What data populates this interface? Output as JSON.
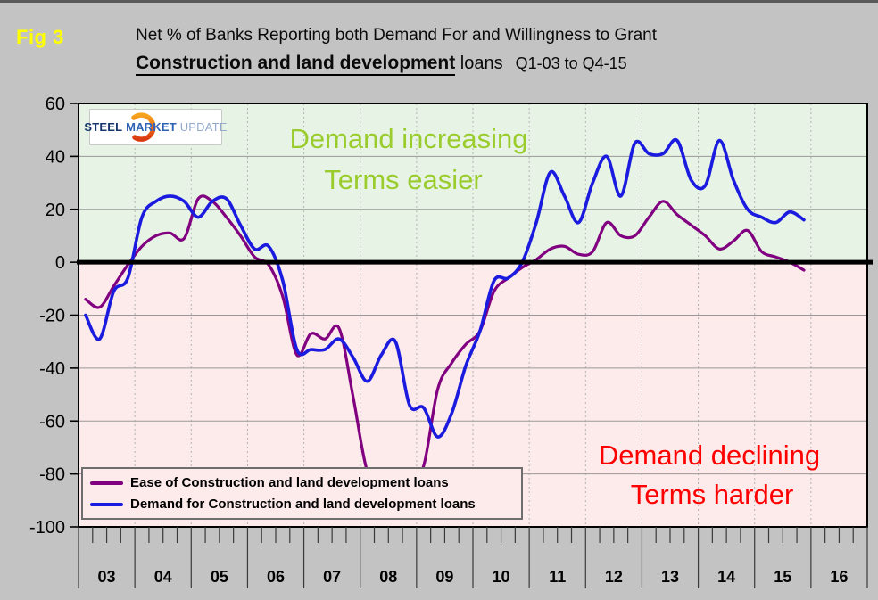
{
  "figure": {
    "tag": "Fig 3",
    "title_line1": "Net % of Banks Reporting both Demand For and Willingness to Grant",
    "title_bold": "Construction and land development",
    "title_loans": " loans",
    "title_range": "Q1-03 to Q4-15"
  },
  "logo": {
    "word1": "STEEL",
    "word2": "MARKET",
    "word3": "UPDATE"
  },
  "annotations": {
    "increasing_line1": "Demand increasing",
    "increasing_line2": "Terms easier",
    "declining_line1": "Demand declining",
    "declining_line2": "Terms harder",
    "increasing_color": "#9acc2e",
    "declining_color": "#ff0000"
  },
  "legend": [
    {
      "label": "Ease of Construction and land development loans",
      "color": "#800080"
    },
    {
      "label": "Demand for Construction and land development loans",
      "color": "#1b1be0"
    }
  ],
  "chart_data": {
    "type": "line",
    "x_unit": "quarter",
    "x_range": "Q1-2003 to Q4-2015",
    "years": [
      "03",
      "04",
      "05",
      "06",
      "07",
      "08",
      "09",
      "10",
      "11",
      "12",
      "13",
      "14",
      "15",
      "16"
    ],
    "quarters_per_year": 4,
    "y_ticks": [
      60,
      40,
      20,
      0,
      -20,
      -40,
      -60,
      -80,
      -100
    ],
    "ylim": [
      -100,
      60
    ],
    "grid": "horizontal solid every 20, dashed vertical at year boundaries",
    "zones": {
      "above_zero_color": "#e7f4e5",
      "below_zero_color": "#fdeaea"
    },
    "series": [
      {
        "name": "Ease of Construction and land development loans",
        "color": "#800080",
        "width": 3.2,
        "values": [
          -14,
          -17,
          -9,
          -1,
          6,
          10,
          11,
          9,
          24,
          23,
          17,
          10,
          2,
          -1,
          -13,
          -35,
          -27,
          -29,
          -25,
          -51,
          -79,
          -83,
          -85,
          -84,
          -77,
          -48,
          -38,
          -31,
          -26,
          -11,
          -6,
          -2,
          1,
          5,
          6,
          3,
          4,
          15,
          10,
          10,
          17,
          23,
          18,
          14,
          10,
          5,
          8,
          12,
          4,
          2,
          0,
          -3
        ]
      },
      {
        "name": "Demand for Construction and land development loans",
        "color": "#1b1be0",
        "width": 3.6,
        "values": [
          -20,
          -29,
          -11,
          -6,
          17,
          23,
          25,
          23,
          17,
          23,
          24,
          14,
          5,
          6,
          -7,
          -33,
          -33,
          -33,
          -29,
          -36,
          -45,
          -35,
          -30,
          -54,
          -55,
          -66,
          -57,
          -39,
          -26,
          -7,
          -6,
          0,
          15,
          34,
          25,
          15,
          30,
          40,
          25,
          45,
          41,
          41,
          46,
          31,
          29,
          46,
          31,
          20,
          17,
          15,
          19,
          16
        ]
      }
    ],
    "axis_colors": {
      "gridline": "#999999",
      "dashed_vline": "#b3b3b3",
      "zero_line": "#000000",
      "border": "#000000"
    }
  }
}
